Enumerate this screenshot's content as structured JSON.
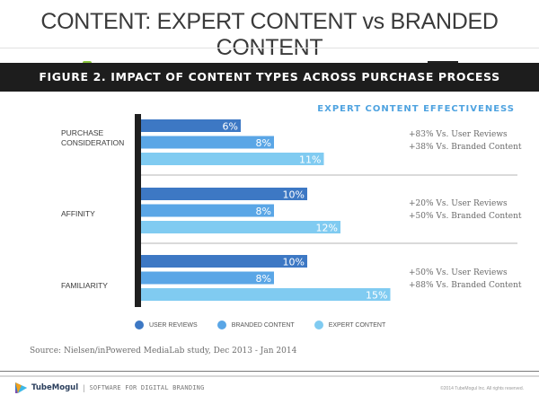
{
  "slide": {
    "title": "CONTENT: EXPERT CONTENT vs BRANDED CONTENT"
  },
  "figure": {
    "header": "FIGURE 2. IMPACT OF CONTENT TYPES ACROSS PURCHASE PROCESS",
    "effectiveness_title": "EXPERT CONTENT EFFECTIVENESS",
    "source": "Source: Nielsen/inPowered MediaLab study, Dec 2013 - Jan 2014"
  },
  "chart_data": {
    "type": "bar",
    "orientation": "horizontal",
    "title": "FIGURE 2. IMPACT OF CONTENT TYPES ACROSS PURCHASE PROCESS",
    "xlabel": "",
    "ylabel": "",
    "categories": [
      "PURCHASE\nCONSIDERATION",
      "AFFINITY",
      "FAMILIARITY"
    ],
    "series": [
      {
        "name": "USER REVIEWS",
        "color": "#3d78c4",
        "values": [
          6,
          10,
          10
        ],
        "labels": [
          "6%",
          "10%",
          "10%"
        ]
      },
      {
        "name": "BRANDED CONTENT",
        "color": "#5aa6e6",
        "values": [
          8,
          8,
          8
        ],
        "labels": [
          "8%",
          "8%",
          "8%"
        ]
      },
      {
        "name": "EXPERT CONTENT",
        "color": "#80cbf1",
        "values": [
          11,
          12,
          15
        ],
        "labels": [
          "11%",
          "12%",
          "15%"
        ]
      }
    ],
    "xlim": [
      0,
      16
    ],
    "grid": false,
    "legend_position": "bottom",
    "annotations": [
      [
        "+83% Vs. User Reviews",
        "+38% Vs. Branded Content"
      ],
      [
        "+20% Vs. User Reviews",
        "+50% Vs. Branded Content"
      ],
      [
        "+50% Vs. User Reviews",
        "+88% Vs. Branded Content"
      ]
    ]
  },
  "footer": {
    "brand": "TubeMogul",
    "separator": "|",
    "tagline": "SOFTWARE FOR DIGITAL BRANDING",
    "copyright": "©2014 TubeMogul Inc. All rights reserved."
  }
}
